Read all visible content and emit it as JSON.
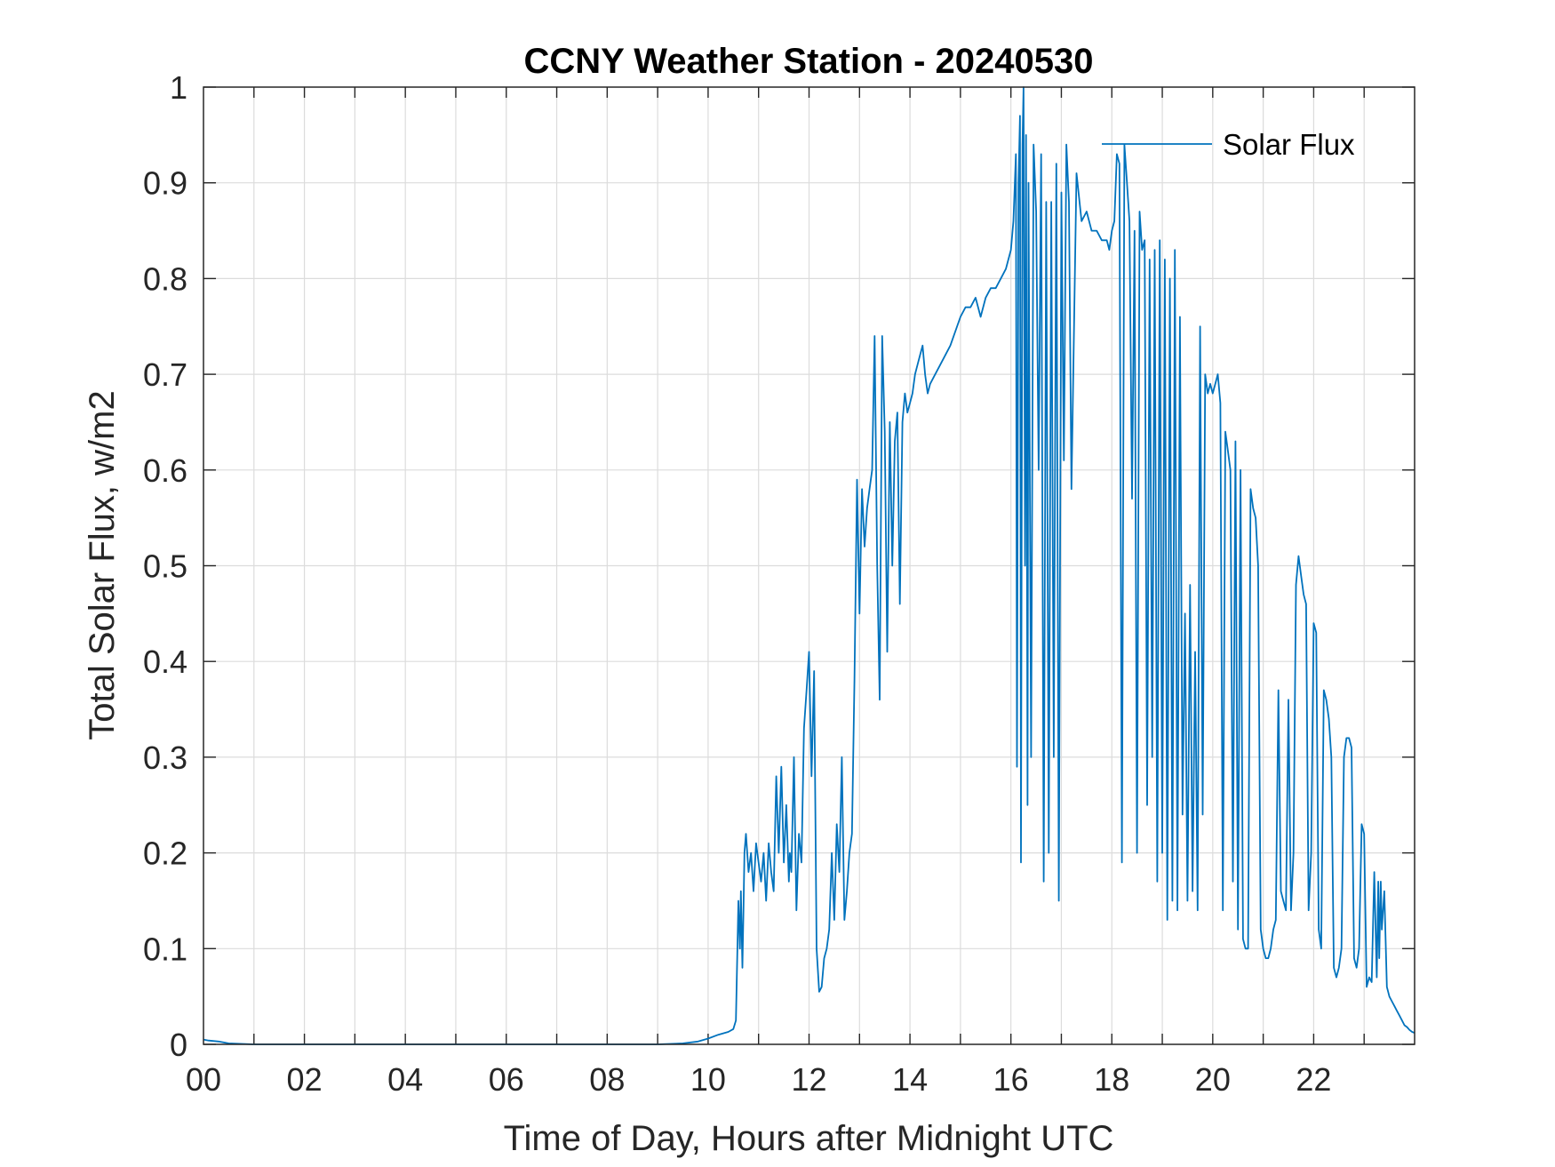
{
  "chart_data": {
    "type": "line",
    "title": "CCNY Weather Station - 20240530",
    "xlabel": "Time of Day, Hours after Midnight UTC",
    "ylabel": "Total Solar Flux, w/m2",
    "xlim": [
      0,
      24
    ],
    "ylim": [
      0,
      1
    ],
    "grid": true,
    "legend": {
      "location": "top-right",
      "entries": [
        "Solar Flux"
      ]
    },
    "xticks": [
      {
        "value": 0,
        "label": "00"
      },
      {
        "value": 2,
        "label": "02"
      },
      {
        "value": 4,
        "label": "04"
      },
      {
        "value": 6,
        "label": "06"
      },
      {
        "value": 8,
        "label": "08"
      },
      {
        "value": 10,
        "label": "10"
      },
      {
        "value": 12,
        "label": "12"
      },
      {
        "value": 14,
        "label": "14"
      },
      {
        "value": 16,
        "label": "16"
      },
      {
        "value": 18,
        "label": "18"
      },
      {
        "value": 20,
        "label": "20"
      },
      {
        "value": 22,
        "label": "22"
      }
    ],
    "yticks": [
      {
        "value": 0,
        "label": "0"
      },
      {
        "value": 0.1,
        "label": "0.1"
      },
      {
        "value": 0.2,
        "label": "0.2"
      },
      {
        "value": 0.3,
        "label": "0.3"
      },
      {
        "value": 0.4,
        "label": "0.4"
      },
      {
        "value": 0.5,
        "label": "0.5"
      },
      {
        "value": 0.6,
        "label": "0.6"
      },
      {
        "value": 0.7,
        "label": "0.7"
      },
      {
        "value": 0.8,
        "label": "0.8"
      },
      {
        "value": 0.9,
        "label": "0.9"
      },
      {
        "value": 1,
        "label": "1"
      }
    ],
    "series": [
      {
        "name": "Solar Flux",
        "color": "#0072BD",
        "x": [
          0,
          0.1,
          0.3,
          0.5,
          1,
          2,
          4,
          6,
          8,
          9,
          9.5,
          9.8,
          10,
          10.2,
          10.4,
          10.5,
          10.55,
          10.6,
          10.63,
          10.65,
          10.68,
          10.7,
          10.72,
          10.75,
          10.8,
          10.85,
          10.9,
          10.95,
          11,
          11.05,
          11.1,
          11.15,
          11.2,
          11.25,
          11.3,
          11.35,
          11.4,
          11.45,
          11.5,
          11.55,
          11.6,
          11.62,
          11.65,
          11.7,
          11.75,
          11.8,
          11.85,
          11.9,
          11.95,
          12,
          12.05,
          12.1,
          12.15,
          12.2,
          12.25,
          12.3,
          12.35,
          12.4,
          12.45,
          12.5,
          12.55,
          12.6,
          12.65,
          12.7,
          12.75,
          12.8,
          12.85,
          12.9,
          12.95,
          13,
          13.05,
          13.1,
          13.15,
          13.2,
          13.25,
          13.3,
          13.35,
          13.4,
          13.45,
          13.5,
          13.55,
          13.6,
          13.65,
          13.7,
          13.75,
          13.8,
          13.85,
          13.9,
          13.95,
          14,
          14.05,
          14.1,
          14.15,
          14.2,
          14.25,
          14.3,
          14.35,
          14.4,
          14.5,
          14.6,
          14.8,
          15,
          15.1,
          15.2,
          15.3,
          15.4,
          15.5,
          15.6,
          15.7,
          15.8,
          15.9,
          16,
          16.05,
          16.1,
          16.12,
          16.15,
          16.18,
          16.2,
          16.23,
          16.25,
          16.28,
          16.3,
          16.33,
          16.35,
          16.4,
          16.45,
          16.5,
          16.55,
          16.6,
          16.65,
          16.7,
          16.75,
          16.8,
          16.85,
          16.9,
          16.95,
          17,
          17.05,
          17.1,
          17.15,
          17.2,
          17.3,
          17.4,
          17.5,
          17.6,
          17.7,
          17.8,
          17.9,
          17.95,
          18,
          18.05,
          18.1,
          18.15,
          18.2,
          18.25,
          18.3,
          18.35,
          18.4,
          18.45,
          18.5,
          18.55,
          18.6,
          18.65,
          18.7,
          18.75,
          18.8,
          18.85,
          18.9,
          18.95,
          19,
          19.05,
          19.1,
          19.15,
          19.2,
          19.25,
          19.3,
          19.35,
          19.4,
          19.45,
          19.5,
          19.55,
          19.6,
          19.65,
          19.7,
          19.75,
          19.8,
          19.85,
          19.9,
          19.95,
          20,
          20.05,
          20.1,
          20.15,
          20.2,
          20.25,
          20.3,
          20.35,
          20.4,
          20.45,
          20.5,
          20.55,
          20.6,
          20.65,
          20.7,
          20.75,
          20.8,
          20.85,
          20.9,
          20.95,
          21,
          21.05,
          21.1,
          21.15,
          21.2,
          21.25,
          21.3,
          21.35,
          21.4,
          21.45,
          21.5,
          21.55,
          21.6,
          21.65,
          21.7,
          21.75,
          21.8,
          21.85,
          21.9,
          21.95,
          22,
          22.05,
          22.1,
          22.15,
          22.2,
          22.25,
          22.3,
          22.35,
          22.4,
          22.45,
          22.5,
          22.55,
          22.6,
          22.65,
          22.7,
          22.75,
          22.8,
          22.85,
          22.9,
          22.95,
          23,
          23.05,
          23.1,
          23.15,
          23.2,
          23.25,
          23.28,
          23.3,
          23.33,
          23.35,
          23.4,
          23.45,
          23.5,
          23.55,
          23.6,
          23.65,
          23.7,
          23.75,
          23.8,
          23.85,
          23.9,
          23.95,
          24
        ],
        "values": [
          0.005,
          0.004,
          0.003,
          0.001,
          0,
          0,
          0,
          0,
          0,
          0,
          0.001,
          0.003,
          0.006,
          0.01,
          0.013,
          0.016,
          0.025,
          0.15,
          0.1,
          0.16,
          0.08,
          0.14,
          0.2,
          0.22,
          0.18,
          0.2,
          0.16,
          0.21,
          0.19,
          0.17,
          0.2,
          0.15,
          0.21,
          0.18,
          0.16,
          0.28,
          0.2,
          0.29,
          0.19,
          0.25,
          0.17,
          0.2,
          0.18,
          0.3,
          0.14,
          0.22,
          0.19,
          0.33,
          0.37,
          0.41,
          0.28,
          0.39,
          0.1,
          0.055,
          0.06,
          0.09,
          0.1,
          0.12,
          0.2,
          0.13,
          0.23,
          0.18,
          0.3,
          0.13,
          0.16,
          0.2,
          0.22,
          0.38,
          0.59,
          0.45,
          0.58,
          0.52,
          0.56,
          0.58,
          0.6,
          0.74,
          0.5,
          0.36,
          0.74,
          0.64,
          0.41,
          0.65,
          0.5,
          0.63,
          0.66,
          0.46,
          0.65,
          0.68,
          0.66,
          0.67,
          0.68,
          0.7,
          0.71,
          0.72,
          0.73,
          0.7,
          0.68,
          0.69,
          0.7,
          0.71,
          0.73,
          0.76,
          0.77,
          0.77,
          0.78,
          0.76,
          0.78,
          0.79,
          0.79,
          0.8,
          0.81,
          0.83,
          0.86,
          0.93,
          0.29,
          0.9,
          0.97,
          0.19,
          0.94,
          1,
          0.5,
          0.95,
          0.25,
          0.9,
          0.3,
          0.94,
          0.87,
          0.6,
          0.93,
          0.17,
          0.88,
          0.2,
          0.88,
          0.3,
          0.92,
          0.15,
          0.89,
          0.61,
          0.94,
          0.88,
          0.58,
          0.91,
          0.86,
          0.87,
          0.85,
          0.85,
          0.84,
          0.84,
          0.83,
          0.85,
          0.86,
          0.93,
          0.92,
          0.19,
          0.94,
          0.9,
          0.86,
          0.57,
          0.85,
          0.2,
          0.87,
          0.83,
          0.84,
          0.25,
          0.82,
          0.3,
          0.83,
          0.17,
          0.84,
          0.2,
          0.82,
          0.13,
          0.8,
          0.15,
          0.83,
          0.14,
          0.76,
          0.24,
          0.45,
          0.15,
          0.48,
          0.16,
          0.41,
          0.14,
          0.75,
          0.24,
          0.7,
          0.68,
          0.69,
          0.68,
          0.69,
          0.7,
          0.67,
          0.14,
          0.64,
          0.62,
          0.6,
          0.17,
          0.63,
          0.12,
          0.6,
          0.11,
          0.1,
          0.1,
          0.58,
          0.56,
          0.55,
          0.5,
          0.12,
          0.1,
          0.09,
          0.09,
          0.1,
          0.12,
          0.13,
          0.37,
          0.16,
          0.15,
          0.14,
          0.36,
          0.14,
          0.2,
          0.48,
          0.51,
          0.49,
          0.47,
          0.46,
          0.14,
          0.2,
          0.44,
          0.43,
          0.12,
          0.1,
          0.37,
          0.36,
          0.34,
          0.3,
          0.08,
          0.07,
          0.08,
          0.1,
          0.3,
          0.32,
          0.32,
          0.31,
          0.09,
          0.08,
          0.1,
          0.23,
          0.22,
          0.06,
          0.07,
          0.065,
          0.18,
          0.07,
          0.17,
          0.09,
          0.17,
          0.12,
          0.16,
          0.06,
          0.05,
          0.045,
          0.04,
          0.035,
          0.03,
          0.025,
          0.02,
          0.018,
          0.015,
          0.013,
          0.012
        ]
      }
    ]
  }
}
